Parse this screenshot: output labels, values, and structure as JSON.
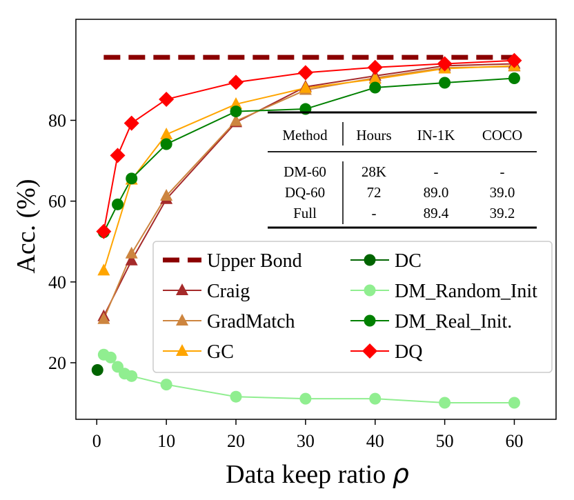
{
  "chart_data": {
    "type": "line",
    "title": "",
    "xlabel": "Data keep ratio",
    "xlabel_symbol": "ρ",
    "ylabel": "Acc. (%)",
    "xlim": [
      -3,
      66
    ],
    "ylim": [
      6,
      105
    ],
    "xticks": [
      0,
      10,
      20,
      30,
      40,
      50,
      60
    ],
    "yticks": [
      20,
      40,
      60,
      80
    ],
    "grid": false,
    "legend": {
      "placement": "lower-right",
      "columns": 2
    },
    "upper_bound": {
      "name": "Upper Bond",
      "value": 95.6,
      "x": [
        1,
        60
      ],
      "color": "#8b0000"
    },
    "series": [
      {
        "name": "Craig",
        "marker": "triangle",
        "color": "#a52a2a",
        "x": [
          1,
          5,
          10,
          20,
          30,
          40,
          50,
          60
        ],
        "y": [
          31.5,
          45.3,
          60.5,
          79.5,
          88.3,
          91.0,
          93.5,
          94.0
        ]
      },
      {
        "name": "GradMatch",
        "marker": "triangle",
        "color": "#cd853f",
        "x": [
          1,
          5,
          10,
          20,
          30,
          40,
          50,
          60
        ],
        "y": [
          30.8,
          47.0,
          61.3,
          79.8,
          87.5,
          90.5,
          93.0,
          93.3
        ]
      },
      {
        "name": "GC",
        "marker": "triangle",
        "color": "#ffa500",
        "x": [
          1,
          5,
          10,
          20,
          30,
          40,
          50,
          60
        ],
        "y": [
          42.8,
          65.3,
          76.5,
          84.0,
          88.0,
          90.2,
          92.8,
          93.5
        ]
      },
      {
        "name": "DC",
        "marker": "circle",
        "color": "#006400",
        "x": [
          0.1
        ],
        "y": [
          18.2
        ]
      },
      {
        "name": "DM_Random_Init",
        "marker": "circle",
        "color": "#90ee90",
        "x": [
          1,
          2,
          3,
          4,
          5,
          10,
          20,
          30,
          40,
          50,
          60
        ],
        "y": [
          22.0,
          21.3,
          19.0,
          17.3,
          16.7,
          14.6,
          11.6,
          11.1,
          11.1,
          10.1,
          10.1
        ]
      },
      {
        "name": "DM_Real_Init.",
        "marker": "circle",
        "color": "#008000",
        "x": [
          1,
          3,
          5,
          10,
          20,
          30,
          40,
          50,
          60
        ],
        "y": [
          52.3,
          59.2,
          65.6,
          74.1,
          82.2,
          82.8,
          88.1,
          89.3,
          90.4
        ]
      },
      {
        "name": "DQ",
        "marker": "diamond",
        "color": "#ff0000",
        "x": [
          1,
          3,
          5,
          10,
          20,
          30,
          40,
          50,
          60
        ],
        "y": [
          52.5,
          71.3,
          79.3,
          85.2,
          89.4,
          91.8,
          93.1,
          94.0,
          94.8
        ]
      }
    ],
    "table": {
      "headers": [
        "Method",
        "Hours",
        "IN-1K",
        "COCO"
      ],
      "rows": [
        [
          "DM-60",
          "28K",
          "-",
          "-"
        ],
        [
          "DQ-60",
          "72",
          "89.0",
          "39.0"
        ],
        [
          "Full",
          "-",
          "89.4",
          "39.2"
        ]
      ]
    }
  }
}
